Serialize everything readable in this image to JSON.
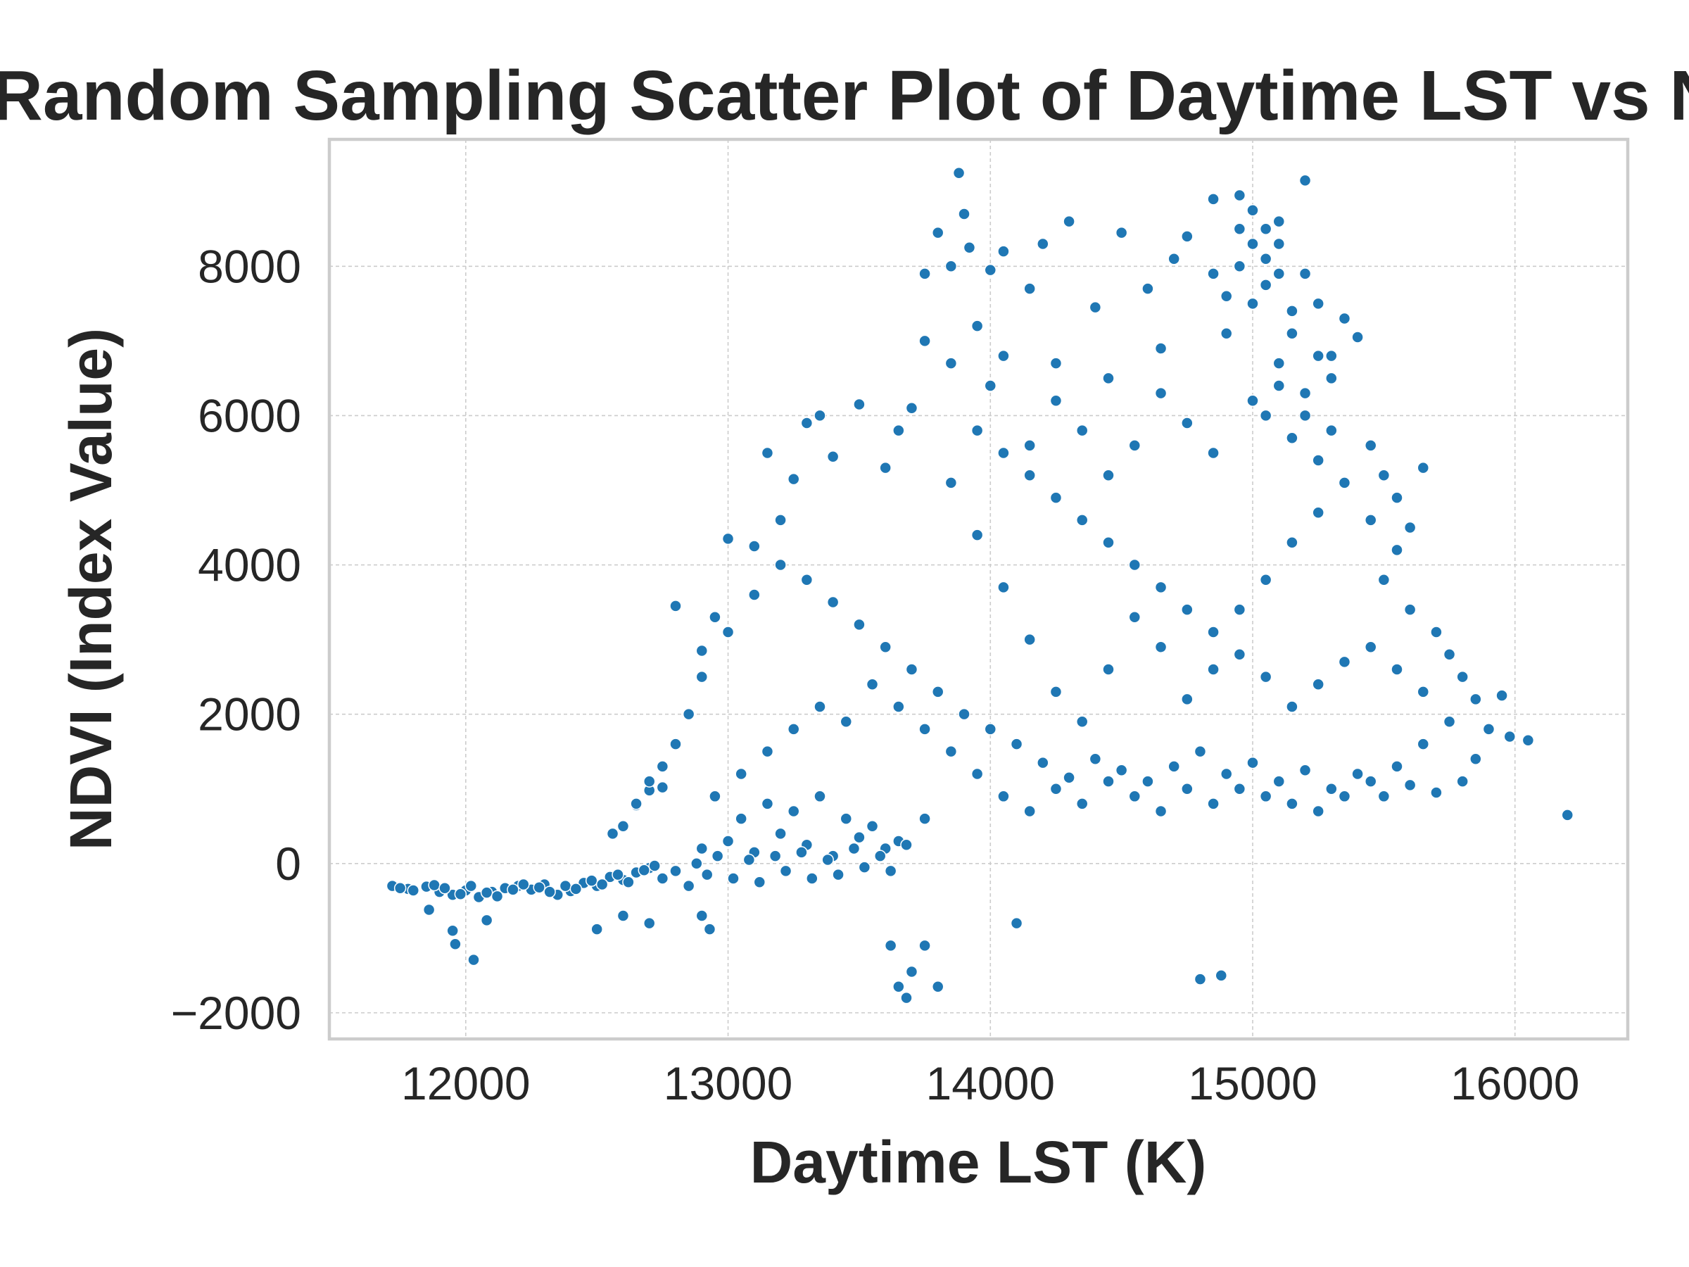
{
  "chart_data": {
    "type": "scatter",
    "title": "Random Sampling Scatter Plot of Daytime LST vs NDVI",
    "xlabel": "Daytime LST (K)",
    "ylabel": "NDVI (Index Value)",
    "xlim": [
      11480,
      16430
    ],
    "ylim": [
      -2350,
      9700
    ],
    "x_ticks": [
      12000,
      13000,
      14000,
      15000,
      16000
    ],
    "x_tick_labels": [
      "12000",
      "13000",
      "14000",
      "15000",
      "16000"
    ],
    "y_ticks": [
      -2000,
      0,
      2000,
      4000,
      6000,
      8000
    ],
    "y_tick_labels": [
      "−2000",
      "0",
      "2000",
      "4000",
      "6000",
      "8000"
    ],
    "grid": true,
    "legend": "none",
    "marker_color": "#1f77b4",
    "marker_edge_color": "#ffffff",
    "series": [
      {
        "points": [
          [
            11720,
            -300
          ],
          [
            11780,
            -340
          ],
          [
            11850,
            -310
          ],
          [
            11900,
            -380
          ],
          [
            11950,
            -420
          ],
          [
            12000,
            -360
          ],
          [
            12050,
            -450
          ],
          [
            12100,
            -380
          ],
          [
            12150,
            -330
          ],
          [
            12200,
            -300
          ],
          [
            12250,
            -350
          ],
          [
            12300,
            -280
          ],
          [
            12350,
            -420
          ],
          [
            12400,
            -370
          ],
          [
            12450,
            -260
          ],
          [
            12500,
            -300
          ],
          [
            12550,
            -180
          ],
          [
            12600,
            -220
          ],
          [
            12650,
            -120
          ],
          [
            12700,
            -60
          ],
          [
            11860,
            -620
          ],
          [
            11950,
            -900
          ],
          [
            11960,
            -1080
          ],
          [
            12030,
            -1290
          ],
          [
            12080,
            -760
          ],
          [
            12500,
            -880
          ],
          [
            12600,
            -700
          ],
          [
            12700,
            -800
          ],
          [
            12930,
            -880
          ],
          [
            12900,
            -700
          ],
          [
            12560,
            400
          ],
          [
            12650,
            780
          ],
          [
            12700,
            980
          ],
          [
            12750,
            1020
          ],
          [
            12800,
            3450
          ],
          [
            12900,
            2850
          ],
          [
            12950,
            3300
          ],
          [
            13000,
            4350
          ],
          [
            13100,
            4250
          ],
          [
            13150,
            5500
          ],
          [
            13200,
            4600
          ],
          [
            13250,
            5150
          ],
          [
            13300,
            5900
          ],
          [
            13350,
            6000
          ],
          [
            13400,
            5450
          ],
          [
            13500,
            6150
          ],
          [
            13600,
            5300
          ],
          [
            13650,
            5800
          ],
          [
            13700,
            6100
          ],
          [
            13750,
            7900
          ],
          [
            13800,
            8450
          ],
          [
            13850,
            8000
          ],
          [
            13880,
            9250
          ],
          [
            13900,
            8700
          ],
          [
            13920,
            8250
          ],
          [
            13700,
            -1450
          ],
          [
            13620,
            -1100
          ],
          [
            13650,
            -1650
          ],
          [
            13680,
            -1800
          ],
          [
            13750,
            -1100
          ],
          [
            13800,
            -1650
          ],
          [
            14100,
            -800
          ],
          [
            14800,
            -1550
          ],
          [
            14880,
            -1500
          ],
          [
            16200,
            650
          ],
          [
            16050,
            1650
          ],
          [
            15980,
            1700
          ],
          [
            15950,
            2250
          ],
          [
            15650,
            5300
          ],
          [
            15200,
            9150
          ],
          [
            14950,
            8950
          ],
          [
            14850,
            8900
          ],
          [
            15000,
            8750
          ],
          [
            15100,
            8600
          ],
          [
            14750,
            8400
          ],
          [
            14700,
            8100
          ],
          [
            14500,
            8450
          ],
          [
            14300,
            8600
          ],
          [
            14200,
            8300
          ],
          [
            14050,
            8200
          ],
          [
            14000,
            7950
          ],
          [
            14150,
            7700
          ],
          [
            14400,
            7450
          ],
          [
            14600,
            7700
          ],
          [
            14850,
            7900
          ],
          [
            15050,
            7750
          ],
          [
            15250,
            7500
          ],
          [
            15350,
            7300
          ],
          [
            15400,
            7050
          ],
          [
            15300,
            6800
          ],
          [
            14900,
            7100
          ],
          [
            14650,
            6900
          ],
          [
            14450,
            6500
          ],
          [
            14250,
            6700
          ],
          [
            14000,
            6400
          ],
          [
            13850,
            6700
          ],
          [
            13750,
            7000
          ],
          [
            15100,
            6400
          ],
          [
            15000,
            6200
          ],
          [
            15200,
            6000
          ],
          [
            15300,
            5800
          ],
          [
            15450,
            5600
          ],
          [
            15500,
            5200
          ],
          [
            15550,
            4900
          ],
          [
            15600,
            4500
          ],
          [
            15550,
            4200
          ],
          [
            15500,
            3800
          ],
          [
            15600,
            3400
          ],
          [
            15700,
            3100
          ],
          [
            15750,
            2800
          ],
          [
            15800,
            2500
          ],
          [
            15850,
            2200
          ],
          [
            15900,
            1800
          ],
          [
            15850,
            1400
          ],
          [
            15800,
            1100
          ],
          [
            15700,
            950
          ],
          [
            15600,
            1050
          ],
          [
            15500,
            900
          ],
          [
            15400,
            1200
          ],
          [
            15300,
            1000
          ],
          [
            15200,
            1250
          ],
          [
            15100,
            1100
          ],
          [
            15000,
            1350
          ],
          [
            14900,
            1200
          ],
          [
            14800,
            1500
          ],
          [
            14700,
            1300
          ],
          [
            14600,
            1100
          ],
          [
            14500,
            1250
          ],
          [
            14400,
            1400
          ],
          [
            14300,
            1150
          ],
          [
            14200,
            1350
          ],
          [
            14100,
            1600
          ],
          [
            14000,
            1800
          ],
          [
            13900,
            2000
          ],
          [
            13800,
            2300
          ],
          [
            13700,
            2600
          ],
          [
            13600,
            2900
          ],
          [
            13500,
            3200
          ],
          [
            13400,
            3500
          ],
          [
            13300,
            3800
          ],
          [
            13200,
            4000
          ],
          [
            13100,
            3600
          ],
          [
            13000,
            3100
          ],
          [
            12900,
            2500
          ],
          [
            12850,
            2000
          ],
          [
            12800,
            1600
          ],
          [
            12750,
            1300
          ],
          [
            12700,
            1100
          ],
          [
            12650,
            800
          ],
          [
            12600,
            500
          ],
          [
            12900,
            200
          ],
          [
            13000,
            300
          ],
          [
            13100,
            150
          ],
          [
            13200,
            400
          ],
          [
            13300,
            250
          ],
          [
            13400,
            100
          ],
          [
            13500,
            350
          ],
          [
            13600,
            200
          ],
          [
            13050,
            600
          ],
          [
            13150,
            800
          ],
          [
            13250,
            700
          ],
          [
            13350,
            900
          ],
          [
            13450,
            600
          ],
          [
            13550,
            500
          ],
          [
            13650,
            300
          ],
          [
            13750,
            600
          ],
          [
            12950,
            900
          ],
          [
            13050,
            1200
          ],
          [
            13150,
            1500
          ],
          [
            13250,
            1800
          ],
          [
            13350,
            2100
          ],
          [
            13450,
            1900
          ],
          [
            13550,
            2400
          ],
          [
            13650,
            2100
          ],
          [
            13750,
            1800
          ],
          [
            13850,
            1500
          ],
          [
            13950,
            1200
          ],
          [
            14050,
            900
          ],
          [
            14150,
            700
          ],
          [
            14250,
            1000
          ],
          [
            14350,
            800
          ],
          [
            14450,
            1100
          ],
          [
            14550,
            900
          ],
          [
            14650,
            700
          ],
          [
            14750,
            1000
          ],
          [
            14850,
            800
          ],
          [
            14950,
            1000
          ],
          [
            15050,
            900
          ],
          [
            15150,
            800
          ],
          [
            15250,
            700
          ],
          [
            15350,
            900
          ],
          [
            15450,
            1100
          ],
          [
            15550,
            1300
          ],
          [
            15650,
            1600
          ],
          [
            15750,
            1900
          ],
          [
            15650,
            2300
          ],
          [
            15550,
            2600
          ],
          [
            15450,
            2900
          ],
          [
            15350,
            2700
          ],
          [
            15250,
            2400
          ],
          [
            15150,
            2100
          ],
          [
            15050,
            2500
          ],
          [
            14950,
            2800
          ],
          [
            14850,
            3100
          ],
          [
            14750,
            3400
          ],
          [
            14650,
            3700
          ],
          [
            14550,
            4000
          ],
          [
            14450,
            4300
          ],
          [
            14350,
            4600
          ],
          [
            14250,
            4900
          ],
          [
            14150,
            5200
          ],
          [
            14050,
            5500
          ],
          [
            13950,
            5800
          ],
          [
            13850,
            5100
          ],
          [
            13950,
            4400
          ],
          [
            14050,
            3700
          ],
          [
            14150,
            3000
          ],
          [
            14250,
            2300
          ],
          [
            14350,
            1900
          ],
          [
            14450,
            2600
          ],
          [
            14550,
            3300
          ],
          [
            14650,
            2900
          ],
          [
            14750,
            2200
          ],
          [
            14850,
            2600
          ],
          [
            14950,
            3400
          ],
          [
            15050,
            3800
          ],
          [
            15150,
            4300
          ],
          [
            15250,
            4700
          ],
          [
            15350,
            5100
          ],
          [
            15450,
            4600
          ],
          [
            14850,
            5500
          ],
          [
            14750,
            5900
          ],
          [
            14650,
            6300
          ],
          [
            14550,
            5600
          ],
          [
            14450,
            5200
          ],
          [
            14350,
            5800
          ],
          [
            14250,
            6200
          ],
          [
            14150,
            5600
          ],
          [
            14050,
            6800
          ],
          [
            13950,
            7200
          ],
          [
            15000,
            8300
          ],
          [
            15050,
            8100
          ],
          [
            14950,
            8000
          ],
          [
            15100,
            7900
          ],
          [
            14900,
            7600
          ],
          [
            15150,
            7400
          ],
          [
            15000,
            7500
          ],
          [
            14950,
            8500
          ],
          [
            15050,
            8500
          ],
          [
            15100,
            8300
          ],
          [
            15200,
            7900
          ],
          [
            15150,
            7100
          ],
          [
            15250,
            6800
          ],
          [
            15300,
            6500
          ],
          [
            15200,
            6300
          ],
          [
            15100,
            6700
          ],
          [
            15050,
            6000
          ],
          [
            15150,
            5700
          ],
          [
            15250,
            5400
          ],
          [
            15350,
            5100
          ],
          [
            11750,
            -330
          ],
          [
            11800,
            -360
          ],
          [
            11880,
            -290
          ],
          [
            11920,
            -330
          ],
          [
            11980,
            -410
          ],
          [
            12020,
            -300
          ],
          [
            12080,
            -390
          ],
          [
            12120,
            -440
          ],
          [
            12180,
            -350
          ],
          [
            12220,
            -280
          ],
          [
            12280,
            -320
          ],
          [
            12320,
            -380
          ],
          [
            12380,
            -300
          ],
          [
            12420,
            -340
          ],
          [
            12480,
            -230
          ],
          [
            12520,
            -280
          ],
          [
            12580,
            -150
          ],
          [
            12620,
            -250
          ],
          [
            12680,
            -90
          ],
          [
            12720,
            -30
          ],
          [
            12750,
            -200
          ],
          [
            12800,
            -100
          ],
          [
            12850,
            -300
          ],
          [
            12880,
            0
          ],
          [
            12920,
            -150
          ],
          [
            12960,
            100
          ],
          [
            13020,
            -200
          ],
          [
            13080,
            50
          ],
          [
            13120,
            -250
          ],
          [
            13180,
            100
          ],
          [
            13220,
            -100
          ],
          [
            13280,
            150
          ],
          [
            13320,
            -200
          ],
          [
            13380,
            50
          ],
          [
            13420,
            -150
          ],
          [
            13480,
            200
          ],
          [
            13520,
            -50
          ],
          [
            13580,
            100
          ],
          [
            13620,
            -100
          ],
          [
            13680,
            250
          ]
        ]
      }
    ]
  }
}
